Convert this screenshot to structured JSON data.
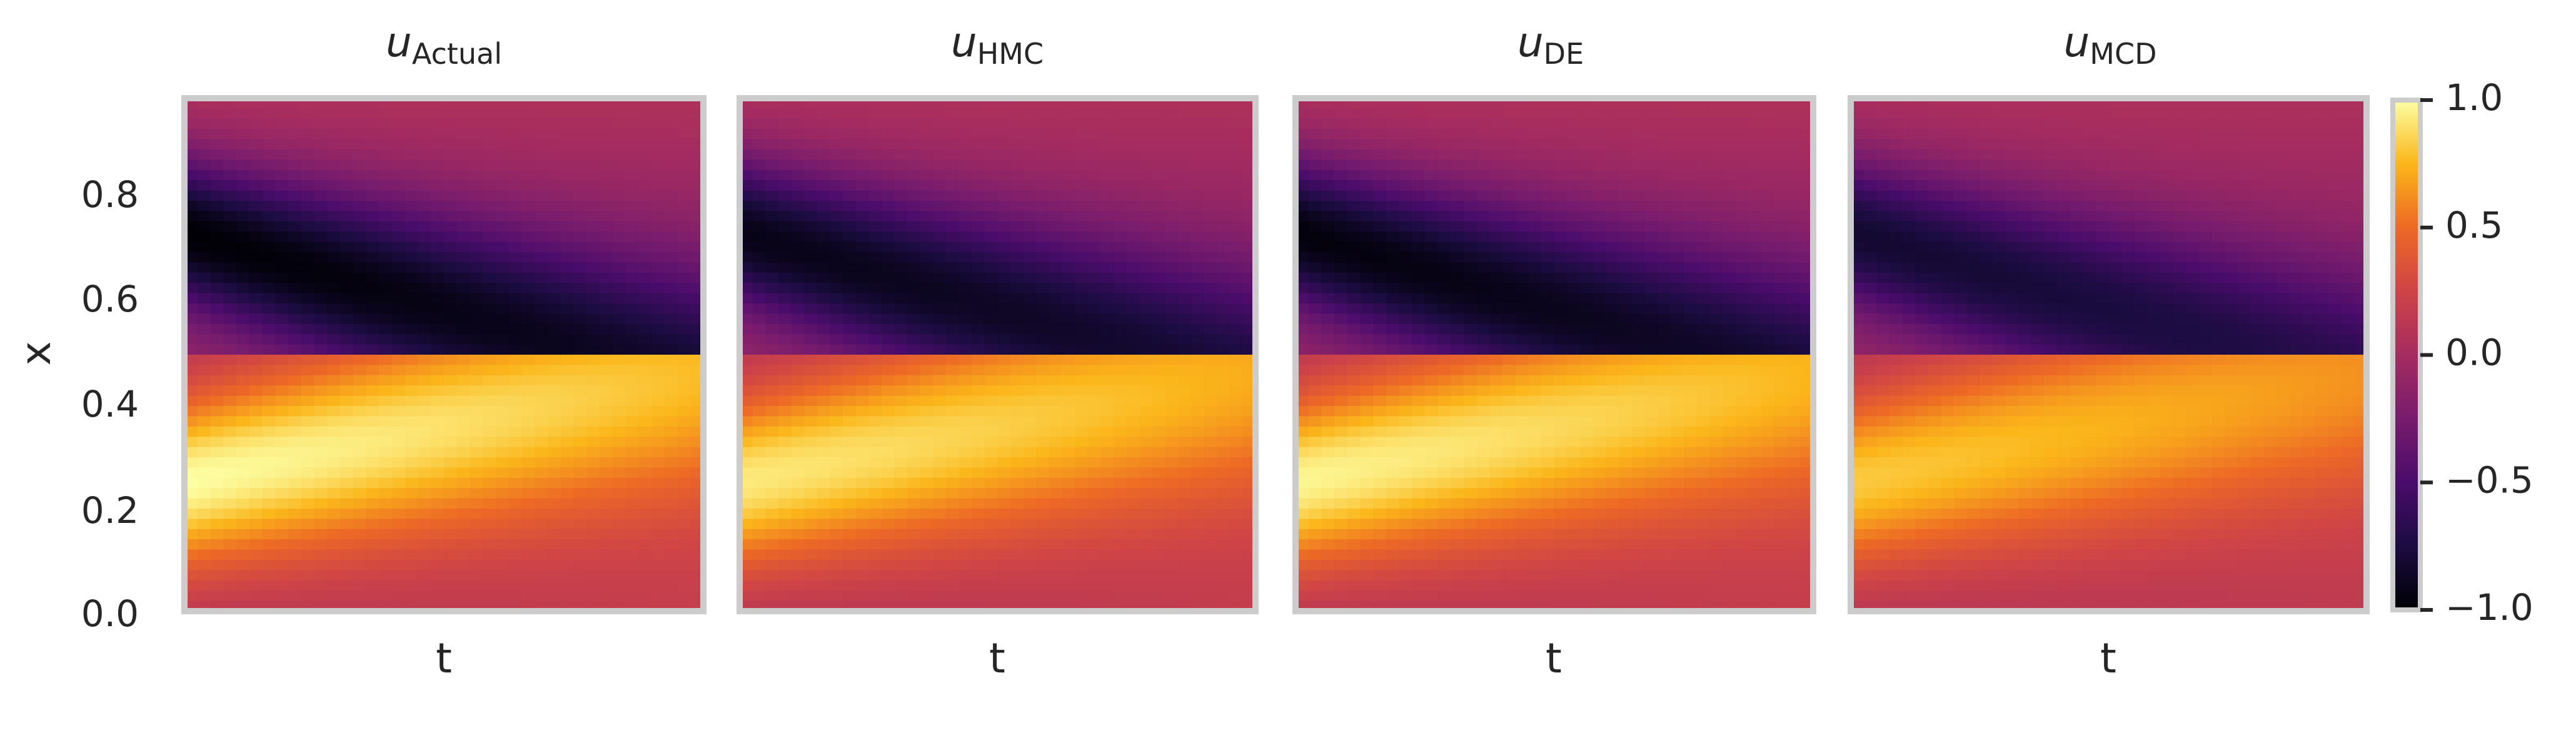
{
  "chart_data": {
    "type": "heatmap",
    "panels": [
      {
        "title_main": "u",
        "title_sub": "Actual",
        "xlabel": "t",
        "intensity": 1.0
      },
      {
        "title_main": "u",
        "title_sub": "HMC",
        "xlabel": "t",
        "intensity": 0.93
      },
      {
        "title_main": "u",
        "title_sub": "DE",
        "xlabel": "t",
        "intensity": 0.97
      },
      {
        "title_main": "u",
        "title_sub": "MCD",
        "xlabel": "t",
        "intensity": 0.82
      }
    ],
    "ylabel": "x",
    "y_ticks": [
      "0.0",
      "0.2",
      "0.4",
      "0.6",
      "0.8"
    ],
    "y_tick_values": [
      0.0,
      0.2,
      0.4,
      0.6,
      0.8
    ],
    "ylim": [
      0,
      1
    ],
    "colorbar": {
      "colormap": "inferno",
      "range": [
        -1.0,
        1.0
      ],
      "ticks": [
        "1.0",
        "0.5",
        "0.0",
        "−0.5",
        "−1.0"
      ],
      "tick_values": [
        1.0,
        0.5,
        0.0,
        -0.5,
        -1.0
      ]
    },
    "grid": false
  }
}
